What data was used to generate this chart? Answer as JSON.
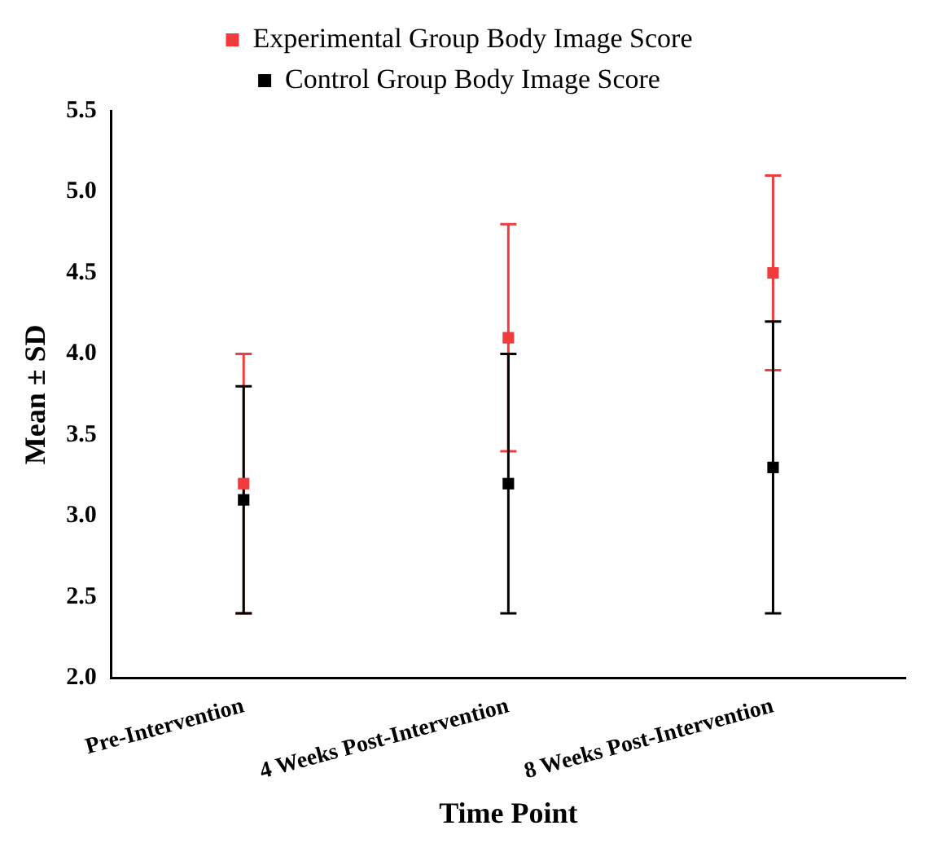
{
  "chart_data": {
    "type": "scatter",
    "xlabel": "Time Point",
    "ylabel": "Mean ± SD",
    "categories": [
      "Pre-Intervention",
      "4 Weeks Post-Intervention",
      "8 Weeks Post-Intervention"
    ],
    "series": [
      {
        "name": "Experimental Group Body Image Score",
        "color": "#f03c3c",
        "values": [
          3.2,
          4.1,
          4.5
        ],
        "errors": [
          [
            2.4,
            4.0
          ],
          [
            3.4,
            4.8
          ],
          [
            3.9,
            5.1
          ]
        ]
      },
      {
        "name": "Control Group Body Image Score",
        "color": "#000000",
        "values": [
          3.1,
          3.2,
          3.3
        ],
        "errors": [
          [
            2.4,
            3.8
          ],
          [
            2.4,
            4.0
          ],
          [
            2.4,
            4.2
          ]
        ]
      }
    ],
    "ylim": [
      2.0,
      5.5
    ],
    "yticks": [
      {
        "value": 2,
        "label": "2.0"
      },
      {
        "value": 2.5,
        "label": "2.5"
      },
      {
        "value": 3,
        "label": "3.0"
      },
      {
        "value": 3.5,
        "label": "3.5"
      },
      {
        "value": 4,
        "label": "4.0"
      },
      {
        "value": 4.5,
        "label": "4.5"
      },
      {
        "value": 5,
        "label": "5.0"
      },
      {
        "value": 5.5,
        "label": "5.5"
      }
    ],
    "grid": false,
    "legend": "top",
    "marker": "square"
  }
}
